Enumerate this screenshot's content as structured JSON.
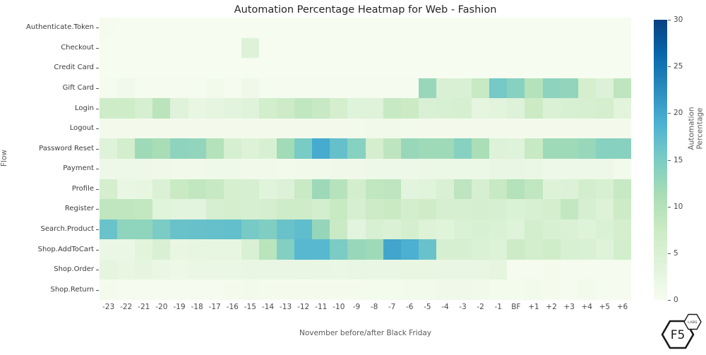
{
  "title": "Automation Percentage Heatmap for Web - Fashion",
  "axes": {
    "x_label": "November before/after Black Friday",
    "y_label": "Flow"
  },
  "colorbar": {
    "label": "Automation Percentage",
    "ticks": [
      0,
      5,
      10,
      15,
      20,
      25,
      30
    ],
    "min": 0,
    "max": 30
  },
  "branding": {
    "logo_main": "F5",
    "logo_sub": "LABS"
  },
  "chart_data": {
    "type": "heatmap",
    "title": "Automation Percentage Heatmap for Web - Fashion",
    "xlabel": "November before/after Black Friday",
    "ylabel": "Flow",
    "legend_label": "Automation Percentage",
    "vmin": 0,
    "vmax": 30,
    "colormap": "GnBu",
    "colormap_stops": [
      "#f7fcf0",
      "#e0f3db",
      "#ccebc5",
      "#a8ddb5",
      "#7bccc4",
      "#4eb3d3",
      "#2b8cbe",
      "#0868ac",
      "#084081"
    ],
    "x_categories": [
      "-23",
      "-22",
      "-21",
      "-20",
      "-19",
      "-18",
      "-17",
      "-16",
      "-15",
      "-14",
      "-13",
      "-12",
      "-11",
      "-10",
      "-9",
      "-8",
      "-7",
      "-6",
      "-5",
      "-4",
      "-3",
      "-2",
      "-1",
      "BF",
      "+1",
      "+2",
      "+3",
      "+4",
      "+5",
      "+6"
    ],
    "y_categories": [
      "Authenticate.Token",
      "Checkout",
      "Credit Card",
      "Gift Card",
      "Login",
      "Logout",
      "Password Reset",
      "Payment",
      "Profile",
      "Register",
      "Search.Product",
      "Shop.AddToCart",
      "Shop.Order",
      "Shop.Return"
    ],
    "values": [
      [
        0.4,
        0.2,
        0.2,
        0.2,
        0.2,
        0.2,
        0.2,
        0.2,
        0.2,
        0.2,
        0.2,
        0.2,
        0.2,
        0.2,
        0.2,
        0.2,
        0.2,
        0.2,
        0.2,
        0.2,
        0.2,
        0.2,
        0.2,
        0.2,
        0.2,
        0.2,
        0.2,
        0.2,
        0.2,
        0.2
      ],
      [
        0.2,
        0.2,
        0.2,
        0.2,
        0.2,
        0.2,
        0.2,
        0.2,
        4.3,
        0.2,
        0.2,
        0.2,
        0.2,
        0.2,
        0.2,
        0.2,
        0.2,
        0.2,
        0.2,
        0.2,
        0.2,
        0.2,
        0.2,
        0.2,
        0.2,
        0.2,
        0.2,
        0.2,
        0.2,
        0.2
      ],
      [
        0.2,
        0.2,
        0.2,
        0.2,
        0.2,
        0.2,
        0.2,
        0.2,
        0.2,
        0.2,
        0.2,
        0.2,
        0.2,
        0.2,
        0.2,
        0.2,
        0.2,
        0.2,
        0.2,
        0.2,
        0.2,
        0.2,
        0.2,
        0.2,
        0.2,
        0.2,
        0.2,
        0.2,
        0.2,
        0.2
      ],
      [
        0.3,
        1.0,
        0.4,
        0.3,
        0.3,
        0.3,
        0.8,
        0.4,
        1.2,
        0.4,
        0.3,
        0.3,
        0.3,
        0.3,
        0.3,
        0.4,
        0.4,
        0.4,
        12.5,
        5.0,
        5.0,
        8.0,
        15.5,
        14.0,
        10.0,
        13.5,
        13.0,
        6.0,
        4.5,
        9.0
      ],
      [
        7.0,
        7.0,
        5.7,
        9.3,
        4.0,
        2.5,
        3.0,
        3.4,
        4.0,
        6.3,
        7.3,
        8.6,
        8.0,
        6.0,
        4.0,
        4.0,
        8.0,
        7.5,
        5.0,
        5.2,
        5.5,
        3.0,
        3.5,
        4.3,
        7.5,
        4.7,
        5.3,
        5.5,
        6.0,
        3.5
      ],
      [
        0.7,
        0.7,
        0.7,
        0.7,
        0.7,
        0.7,
        0.7,
        0.7,
        0.7,
        0.7,
        0.7,
        0.7,
        0.7,
        0.7,
        0.7,
        1.0,
        1.0,
        0.7,
        0.7,
        0.7,
        0.7,
        0.7,
        0.7,
        0.7,
        0.7,
        0.7,
        0.7,
        0.7,
        0.7,
        0.7
      ],
      [
        4.0,
        6.3,
        12.0,
        11.2,
        13.4,
        13.0,
        10.0,
        5.7,
        4.4,
        5.2,
        11.8,
        15.2,
        19.5,
        16.8,
        14.0,
        6.0,
        9.0,
        12.5,
        12.0,
        12.0,
        14.0,
        11.0,
        4.3,
        4.0,
        8.0,
        12.0,
        12.0,
        12.5,
        14.0,
        13.8
      ],
      [
        1.5,
        1.5,
        1.5,
        1.2,
        1.0,
        1.0,
        1.3,
        1.3,
        1.0,
        1.0,
        0.8,
        1.0,
        1.0,
        1.2,
        1.2,
        1.5,
        1.5,
        1.5,
        1.8,
        1.8,
        1.8,
        1.8,
        2.4,
        2.4,
        2.0,
        1.5,
        1.5,
        1.5,
        1.5,
        0.8
      ],
      [
        6.0,
        2.3,
        2.6,
        4.6,
        7.7,
        8.6,
        8.0,
        5.8,
        5.5,
        3.8,
        4.5,
        7.8,
        12.2,
        9.7,
        6.2,
        8.7,
        9.0,
        3.4,
        3.7,
        5.0,
        9.0,
        5.5,
        8.0,
        10.0,
        8.7,
        4.2,
        4.5,
        6.2,
        5.2,
        8.0
      ],
      [
        8.8,
        8.8,
        8.4,
        3.7,
        3.3,
        3.3,
        5.7,
        6.0,
        5.7,
        6.0,
        7.0,
        7.2,
        6.1,
        7.9,
        5.7,
        7.3,
        7.7,
        6.2,
        7.0,
        5.5,
        5.7,
        6.0,
        5.7,
        4.7,
        5.2,
        6.0,
        8.5,
        5.7,
        4.4,
        7.3
      ],
      [
        16.4,
        13.3,
        13.3,
        15.0,
        16.5,
        16.6,
        16.8,
        17.0,
        15.3,
        14.6,
        16.5,
        17.3,
        12.8,
        7.8,
        3.4,
        5.2,
        4.7,
        6.0,
        4.4,
        3.8,
        4.7,
        5.2,
        4.7,
        4.0,
        6.3,
        5.2,
        4.7,
        4.0,
        4.7,
        6.0
      ],
      [
        2.2,
        2.2,
        3.5,
        5.0,
        2.5,
        2.7,
        2.6,
        2.6,
        5.0,
        9.5,
        14.3,
        18.0,
        18.0,
        15.0,
        12.5,
        12.0,
        20.0,
        19.0,
        16.5,
        5.5,
        5.6,
        4.8,
        4.4,
        7.3,
        6.3,
        6.7,
        5.2,
        5.0,
        4.0,
        6.3
      ],
      [
        3.0,
        2.3,
        2.8,
        2.2,
        1.7,
        2.0,
        2.0,
        2.2,
        2.4,
        2.3,
        2.3,
        2.4,
        2.3,
        2.1,
        2.4,
        2.3,
        2.3,
        2.5,
        2.5,
        2.3,
        2.3,
        2.3,
        3.0,
        0.3,
        0.3,
        0.5,
        0.3,
        0.3,
        0.3,
        0.3
      ],
      [
        0.5,
        0.4,
        0.4,
        0.4,
        0.4,
        0.4,
        0.4,
        0.5,
        0.8,
        0.5,
        0.5,
        0.5,
        0.5,
        0.5,
        0.5,
        0.6,
        0.6,
        0.8,
        0.8,
        1.2,
        1.2,
        1.0,
        0.6,
        0.6,
        0.8,
        0.5,
        0.4,
        0.8,
        0.4,
        0.3
      ]
    ]
  }
}
